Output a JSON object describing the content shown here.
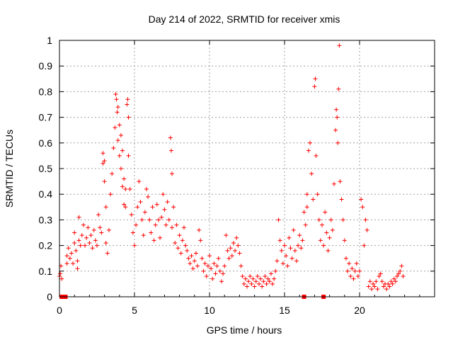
{
  "chart_data": {
    "type": "scatter",
    "title": "Day 214 of 2022, SRMTID for receiver xmis",
    "xlabel": "GPS time / hours",
    "ylabel": "SRMTID / TECUs",
    "xlim": [
      0,
      25
    ],
    "ylim": [
      0,
      1
    ],
    "xticks": [
      "0",
      "5",
      "10",
      "15",
      "20"
    ],
    "yticks": [
      "0",
      "0.1",
      "0.2",
      "0.3",
      "0.4",
      "0.5",
      "0.6",
      "0.7",
      "0.8",
      "0.9",
      "1"
    ],
    "grid": true,
    "marker": "+",
    "color": "#ff0000",
    "series": [
      {
        "name": "SRMTID",
        "points": [
          [
            0.0,
            0.08
          ],
          [
            0.05,
            0.09
          ],
          [
            0.1,
            0.12
          ],
          [
            0.15,
            0.07
          ],
          [
            0.5,
            0.16
          ],
          [
            0.5,
            0.13
          ],
          [
            0.6,
            0.19
          ],
          [
            0.7,
            0.15
          ],
          [
            0.8,
            0.17
          ],
          [
            0.9,
            0.13
          ],
          [
            1.0,
            0.21
          ],
          [
            1.0,
            0.25
          ],
          [
            1.1,
            0.18
          ],
          [
            1.2,
            0.14
          ],
          [
            1.2,
            0.11
          ],
          [
            1.3,
            0.22
          ],
          [
            1.3,
            0.31
          ],
          [
            1.4,
            0.2
          ],
          [
            1.5,
            0.24
          ],
          [
            1.6,
            0.28
          ],
          [
            1.7,
            0.2
          ],
          [
            1.8,
            0.23
          ],
          [
            1.9,
            0.27
          ],
          [
            2.0,
            0.21
          ],
          [
            2.1,
            0.24
          ],
          [
            2.2,
            0.19
          ],
          [
            2.3,
            0.26
          ],
          [
            2.4,
            0.22
          ],
          [
            2.5,
            0.2
          ],
          [
            2.6,
            0.32
          ],
          [
            2.7,
            0.27
          ],
          [
            2.8,
            0.25
          ],
          [
            2.9,
            0.56
          ],
          [
            2.9,
            0.52
          ],
          [
            3.0,
            0.53
          ],
          [
            3.0,
            0.45
          ],
          [
            3.1,
            0.35
          ],
          [
            3.1,
            0.21
          ],
          [
            3.2,
            0.17
          ],
          [
            3.3,
            0.26
          ],
          [
            3.4,
            0.4
          ],
          [
            3.5,
            0.48
          ],
          [
            3.6,
            0.58
          ],
          [
            3.7,
            0.66
          ],
          [
            3.75,
            0.79
          ],
          [
            3.8,
            0.77
          ],
          [
            3.85,
            0.72
          ],
          [
            3.9,
            0.74
          ],
          [
            3.9,
            0.61
          ],
          [
            4.0,
            0.67
          ],
          [
            4.0,
            0.55
          ],
          [
            4.1,
            0.63
          ],
          [
            4.1,
            0.5
          ],
          [
            4.2,
            0.57
          ],
          [
            4.2,
            0.43
          ],
          [
            4.3,
            0.46
          ],
          [
            4.3,
            0.36
          ],
          [
            4.4,
            0.42
          ],
          [
            4.4,
            0.35
          ],
          [
            4.5,
            0.75
          ],
          [
            4.55,
            0.77
          ],
          [
            4.6,
            0.7
          ],
          [
            4.6,
            0.55
          ],
          [
            4.7,
            0.42
          ],
          [
            4.8,
            0.32
          ],
          [
            4.9,
            0.25
          ],
          [
            5.0,
            0.2
          ],
          [
            5.1,
            0.28
          ],
          [
            5.2,
            0.35
          ],
          [
            5.3,
            0.45
          ],
          [
            5.4,
            0.37
          ],
          [
            5.5,
            0.3
          ],
          [
            5.6,
            0.24
          ],
          [
            5.7,
            0.33
          ],
          [
            5.8,
            0.42
          ],
          [
            5.9,
            0.39
          ],
          [
            6.0,
            0.3
          ],
          [
            6.1,
            0.25
          ],
          [
            6.2,
            0.35
          ],
          [
            6.3,
            0.22
          ],
          [
            6.4,
            0.28
          ],
          [
            6.5,
            0.36
          ],
          [
            6.6,
            0.3
          ],
          [
            6.7,
            0.23
          ],
          [
            6.8,
            0.31
          ],
          [
            6.9,
            0.4
          ],
          [
            7.0,
            0.34
          ],
          [
            7.1,
            0.28
          ],
          [
            7.2,
            0.37
          ],
          [
            7.3,
            0.3
          ],
          [
            7.4,
            0.62
          ],
          [
            7.45,
            0.57
          ],
          [
            7.5,
            0.48
          ],
          [
            7.5,
            0.27
          ],
          [
            7.6,
            0.35
          ],
          [
            7.7,
            0.21
          ],
          [
            7.8,
            0.28
          ],
          [
            7.9,
            0.19
          ],
          [
            8.0,
            0.24
          ],
          [
            8.1,
            0.17
          ],
          [
            8.2,
            0.22
          ],
          [
            8.3,
            0.27
          ],
          [
            8.4,
            0.2
          ],
          [
            8.5,
            0.18
          ],
          [
            8.6,
            0.15
          ],
          [
            8.7,
            0.13
          ],
          [
            8.8,
            0.16
          ],
          [
            8.9,
            0.11
          ],
          [
            9.0,
            0.14
          ],
          [
            9.1,
            0.17
          ],
          [
            9.2,
            0.12
          ],
          [
            9.3,
            0.26
          ],
          [
            9.4,
            0.22
          ],
          [
            9.5,
            0.15
          ],
          [
            9.6,
            0.1
          ],
          [
            9.7,
            0.13
          ],
          [
            9.8,
            0.08
          ],
          [
            9.9,
            0.12
          ],
          [
            10.0,
            0.16
          ],
          [
            10.1,
            0.11
          ],
          [
            10.2,
            0.07
          ],
          [
            10.3,
            0.13
          ],
          [
            10.4,
            0.09
          ],
          [
            10.5,
            0.12
          ],
          [
            10.6,
            0.15
          ],
          [
            10.7,
            0.1
          ],
          [
            10.8,
            0.06
          ],
          [
            10.9,
            0.09
          ],
          [
            11.0,
            0.12
          ],
          [
            11.1,
            0.24
          ],
          [
            11.2,
            0.18
          ],
          [
            11.3,
            0.15
          ],
          [
            11.4,
            0.19
          ],
          [
            11.5,
            0.16
          ],
          [
            11.6,
            0.21
          ],
          [
            11.7,
            0.18
          ],
          [
            11.8,
            0.23
          ],
          [
            11.9,
            0.2
          ],
          [
            12.0,
            0.17
          ],
          [
            12.1,
            0.12
          ],
          [
            12.2,
            0.08
          ],
          [
            12.3,
            0.05
          ],
          [
            12.4,
            0.07
          ],
          [
            12.5,
            0.04
          ],
          [
            12.6,
            0.06
          ],
          [
            12.7,
            0.08
          ],
          [
            12.8,
            0.05
          ],
          [
            12.9,
            0.07
          ],
          [
            13.0,
            0.04
          ],
          [
            13.1,
            0.06
          ],
          [
            13.2,
            0.08
          ],
          [
            13.3,
            0.05
          ],
          [
            13.4,
            0.07
          ],
          [
            13.5,
            0.04
          ],
          [
            13.6,
            0.06
          ],
          [
            13.7,
            0.08
          ],
          [
            13.8,
            0.05
          ],
          [
            13.9,
            0.07
          ],
          [
            14.0,
            0.06
          ],
          [
            14.1,
            0.09
          ],
          [
            14.2,
            0.05
          ],
          [
            14.3,
            0.07
          ],
          [
            14.4,
            0.1
          ],
          [
            14.5,
            0.14
          ],
          [
            14.6,
            0.3
          ],
          [
            14.7,
            0.22
          ],
          [
            14.8,
            0.18
          ],
          [
            14.9,
            0.13
          ],
          [
            15.0,
            0.2
          ],
          [
            15.1,
            0.16
          ],
          [
            15.2,
            0.12
          ],
          [
            15.3,
            0.23
          ],
          [
            15.4,
            0.19
          ],
          [
            15.5,
            0.15
          ],
          [
            15.6,
            0.26
          ],
          [
            15.7,
            0.18
          ],
          [
            15.8,
            0.14
          ],
          [
            15.9,
            0.2
          ],
          [
            16.0,
            0.24
          ],
          [
            16.1,
            0.19
          ],
          [
            16.2,
            0.22
          ],
          [
            16.3,
            0.33
          ],
          [
            16.4,
            0.28
          ],
          [
            16.5,
            0.4
          ],
          [
            16.5,
            0.35
          ],
          [
            16.6,
            0.57
          ],
          [
            16.7,
            0.6
          ],
          [
            16.8,
            0.48
          ],
          [
            16.9,
            0.38
          ],
          [
            17.0,
            0.82
          ],
          [
            17.05,
            0.85
          ],
          [
            17.1,
            0.55
          ],
          [
            17.2,
            0.4
          ],
          [
            17.3,
            0.3
          ],
          [
            17.4,
            0.22
          ],
          [
            17.5,
            0.28
          ],
          [
            17.6,
            0.2
          ],
          [
            17.7,
            0.33
          ],
          [
            17.8,
            0.25
          ],
          [
            17.9,
            0.18
          ],
          [
            18.0,
            0.23
          ],
          [
            18.1,
            0.3
          ],
          [
            18.2,
            0.26
          ],
          [
            18.3,
            0.44
          ],
          [
            18.4,
            0.65
          ],
          [
            18.45,
            0.73
          ],
          [
            18.5,
            0.7
          ],
          [
            18.55,
            0.6
          ],
          [
            18.6,
            0.81
          ],
          [
            18.65,
            0.98
          ],
          [
            18.7,
            0.45
          ],
          [
            18.8,
            0.38
          ],
          [
            18.9,
            0.3
          ],
          [
            19.0,
            0.22
          ],
          [
            19.1,
            0.15
          ],
          [
            19.2,
            0.1
          ],
          [
            19.3,
            0.13
          ],
          [
            19.4,
            0.08
          ],
          [
            19.5,
            0.11
          ],
          [
            19.6,
            0.07
          ],
          [
            19.7,
            0.1
          ],
          [
            19.8,
            0.13
          ],
          [
            19.9,
            0.08
          ],
          [
            20.0,
            0.1
          ],
          [
            20.1,
            0.38
          ],
          [
            20.2,
            0.35
          ],
          [
            20.3,
            0.2
          ],
          [
            20.4,
            0.3
          ],
          [
            20.5,
            0.26
          ],
          [
            20.6,
            0.04
          ],
          [
            20.7,
            0.06
          ],
          [
            20.8,
            0.03
          ],
          [
            20.9,
            0.05
          ],
          [
            21.0,
            0.04
          ],
          [
            21.1,
            0.06
          ],
          [
            21.2,
            0.03
          ],
          [
            21.3,
            0.08
          ],
          [
            21.4,
            0.09
          ],
          [
            21.5,
            0.06
          ],
          [
            21.6,
            0.04
          ],
          [
            21.7,
            0.05
          ],
          [
            21.8,
            0.03
          ],
          [
            21.9,
            0.05
          ],
          [
            22.0,
            0.04
          ],
          [
            22.1,
            0.06
          ],
          [
            22.2,
            0.05
          ],
          [
            22.3,
            0.07
          ],
          [
            22.4,
            0.06
          ],
          [
            22.5,
            0.08
          ],
          [
            22.6,
            0.09
          ],
          [
            22.7,
            0.1
          ],
          [
            22.8,
            0.12
          ],
          [
            22.9,
            0.08
          ]
        ]
      }
    ],
    "zero_markers": [
      0.15,
      0.2,
      0.3,
      0.4,
      16.3,
      17.6
    ]
  }
}
